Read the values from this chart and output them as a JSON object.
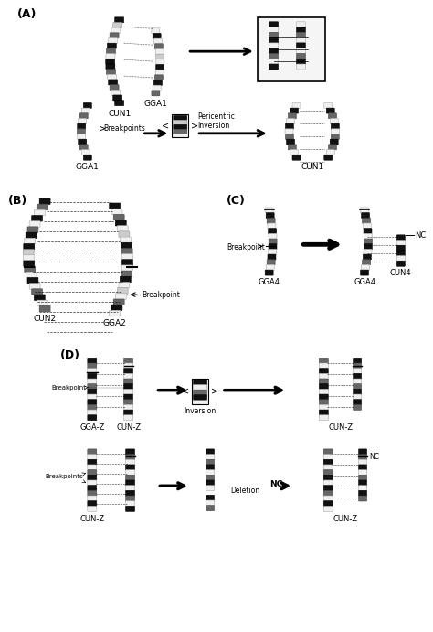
{
  "bg_color": "#ffffff",
  "panel_labels": [
    "(A)",
    "(B)",
    "(C)",
    "(D)"
  ],
  "section_A": {
    "label_cun1": "CUN1",
    "label_gga1": "GGA1",
    "breakpoints_text": "Breakpoints",
    "pericentric_text": "Pericentric\nInversion"
  },
  "section_B": {
    "label_cun2": "CUN2",
    "label_gga2": "GGA2",
    "breakpoint_text": "Breakpoint"
  },
  "section_C": {
    "label_gga4a": "GGA4",
    "label_gga4b": "GGA4",
    "label_cun4": "CUN4",
    "breakpoint_text": "Breakpoint",
    "nc_text": "NC"
  },
  "section_D": {
    "label_ggaz": "GGA-Z",
    "label_cunz": "CUN-Z",
    "inversion_text": "Inversion",
    "deletion_text": "Deletion",
    "breakpoint_text": "Breakpoint",
    "breakpoints_text": "Breakpoints",
    "nc_text": "NC"
  }
}
